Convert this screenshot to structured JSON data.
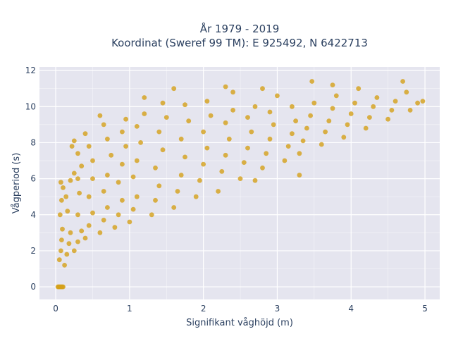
{
  "chart_data": {
    "type": "scatter",
    "title": "År 1979 - 2019",
    "subtitle": "Koordinat (Sweref 99 TM): E 925492, N 6422713",
    "xlabel": "Signifikant våghöjd (m)",
    "ylabel": "Vågperiod (s)",
    "xlim": [
      -0.22,
      5.2
    ],
    "ylim": [
      -0.7,
      12.2
    ],
    "xticks": [
      0,
      1,
      2,
      3,
      4,
      5
    ],
    "yticks": [
      0,
      2,
      4,
      6,
      8,
      10,
      12
    ],
    "grid": true,
    "legend": "none",
    "marker_color": "#d4a019",
    "background_color": "#e5e5ef",
    "grid_color": "#ffffff",
    "series": [
      {
        "values_xy": [
          [
            0.03,
            0.0
          ],
          [
            0.04,
            0.0
          ],
          [
            0.05,
            0.0
          ],
          [
            0.06,
            0.0
          ],
          [
            0.07,
            0.0
          ],
          [
            0.08,
            0.0
          ],
          [
            0.09,
            0.0
          ],
          [
            0.1,
            0.0
          ],
          [
            0.05,
            1.5
          ],
          [
            0.07,
            2.0
          ],
          [
            0.08,
            2.6
          ],
          [
            0.09,
            3.2
          ],
          [
            0.06,
            4.0
          ],
          [
            0.08,
            4.8
          ],
          [
            0.1,
            5.5
          ],
          [
            0.07,
            5.8
          ],
          [
            0.12,
            1.2
          ],
          [
            0.15,
            1.8
          ],
          [
            0.18,
            2.4
          ],
          [
            0.2,
            3.0
          ],
          [
            0.16,
            4.2
          ],
          [
            0.14,
            5.0
          ],
          [
            0.2,
            5.9
          ],
          [
            0.25,
            6.3
          ],
          [
            0.25,
            2.0
          ],
          [
            0.3,
            2.5
          ],
          [
            0.35,
            3.1
          ],
          [
            0.3,
            4.0
          ],
          [
            0.32,
            5.2
          ],
          [
            0.3,
            6.0
          ],
          [
            0.35,
            6.7
          ],
          [
            0.3,
            7.4
          ],
          [
            0.22,
            7.8
          ],
          [
            0.25,
            8.1
          ],
          [
            0.4,
            2.7
          ],
          [
            0.45,
            3.4
          ],
          [
            0.5,
            4.1
          ],
          [
            0.45,
            5.0
          ],
          [
            0.5,
            6.0
          ],
          [
            0.5,
            7.0
          ],
          [
            0.45,
            7.8
          ],
          [
            0.4,
            8.5
          ],
          [
            0.6,
            3.0
          ],
          [
            0.65,
            3.7
          ],
          [
            0.7,
            4.4
          ],
          [
            0.65,
            5.3
          ],
          [
            0.7,
            6.2
          ],
          [
            0.75,
            7.3
          ],
          [
            0.7,
            8.2
          ],
          [
            0.65,
            9.0
          ],
          [
            0.6,
            9.5
          ],
          [
            0.8,
            3.3
          ],
          [
            0.85,
            4.0
          ],
          [
            0.9,
            4.8
          ],
          [
            0.85,
            5.8
          ],
          [
            0.9,
            6.8
          ],
          [
            0.95,
            7.8
          ],
          [
            0.9,
            8.6
          ],
          [
            0.95,
            9.3
          ],
          [
            1.0,
            3.6
          ],
          [
            1.05,
            4.3
          ],
          [
            1.1,
            5.0
          ],
          [
            1.05,
            6.1
          ],
          [
            1.1,
            7.0
          ],
          [
            1.15,
            8.0
          ],
          [
            1.1,
            8.9
          ],
          [
            1.2,
            9.6
          ],
          [
            1.2,
            10.5
          ],
          [
            1.3,
            4.0
          ],
          [
            1.35,
            4.8
          ],
          [
            1.4,
            5.6
          ],
          [
            1.35,
            6.6
          ],
          [
            1.45,
            7.6
          ],
          [
            1.4,
            8.6
          ],
          [
            1.5,
            9.4
          ],
          [
            1.45,
            10.2
          ],
          [
            1.6,
            4.4
          ],
          [
            1.65,
            5.3
          ],
          [
            1.7,
            6.2
          ],
          [
            1.75,
            7.2
          ],
          [
            1.7,
            8.2
          ],
          [
            1.8,
            9.2
          ],
          [
            1.75,
            10.1
          ],
          [
            1.9,
            5.0
          ],
          [
            1.95,
            5.9
          ],
          [
            2.0,
            6.8
          ],
          [
            2.05,
            7.7
          ],
          [
            2.0,
            8.6
          ],
          [
            2.1,
            9.5
          ],
          [
            2.05,
            10.3
          ],
          [
            2.2,
            5.3
          ],
          [
            2.25,
            6.4
          ],
          [
            2.3,
            7.3
          ],
          [
            2.35,
            8.2
          ],
          [
            2.3,
            9.1
          ],
          [
            2.4,
            9.8
          ],
          [
            2.4,
            10.8
          ],
          [
            2.5,
            6.0
          ],
          [
            2.55,
            6.9
          ],
          [
            2.6,
            7.7
          ],
          [
            2.65,
            8.6
          ],
          [
            2.6,
            9.4
          ],
          [
            2.7,
            10.0
          ],
          [
            2.8,
            6.6
          ],
          [
            2.85,
            7.4
          ],
          [
            2.9,
            8.2
          ],
          [
            2.95,
            9.0
          ],
          [
            2.9,
            9.7
          ],
          [
            3.0,
            10.6
          ],
          [
            3.1,
            7.0
          ],
          [
            3.15,
            7.8
          ],
          [
            3.2,
            8.5
          ],
          [
            3.25,
            9.2
          ],
          [
            3.2,
            10.0
          ],
          [
            3.3,
            7.4
          ],
          [
            3.35,
            8.1
          ],
          [
            3.4,
            8.8
          ],
          [
            3.45,
            9.5
          ],
          [
            3.5,
            10.2
          ],
          [
            3.6,
            7.9
          ],
          [
            3.65,
            8.6
          ],
          [
            3.7,
            9.2
          ],
          [
            3.75,
            9.9
          ],
          [
            3.8,
            10.6
          ],
          [
            3.9,
            8.3
          ],
          [
            3.95,
            9.0
          ],
          [
            4.0,
            9.6
          ],
          [
            4.05,
            10.2
          ],
          [
            4.2,
            8.8
          ],
          [
            4.25,
            9.4
          ],
          [
            4.3,
            10.0
          ],
          [
            4.35,
            10.5
          ],
          [
            4.5,
            9.3
          ],
          [
            4.55,
            9.8
          ],
          [
            4.6,
            10.3
          ],
          [
            4.7,
            11.4
          ],
          [
            4.75,
            10.8
          ],
          [
            4.8,
            9.8
          ],
          [
            4.9,
            10.2
          ],
          [
            4.97,
            10.3
          ],
          [
            3.47,
            11.4
          ],
          [
            2.3,
            11.1
          ],
          [
            1.6,
            11.0
          ],
          [
            2.8,
            11.0
          ],
          [
            3.3,
            6.2
          ],
          [
            2.7,
            5.9
          ],
          [
            3.75,
            11.2
          ],
          [
            4.1,
            11.0
          ]
        ]
      }
    ]
  }
}
